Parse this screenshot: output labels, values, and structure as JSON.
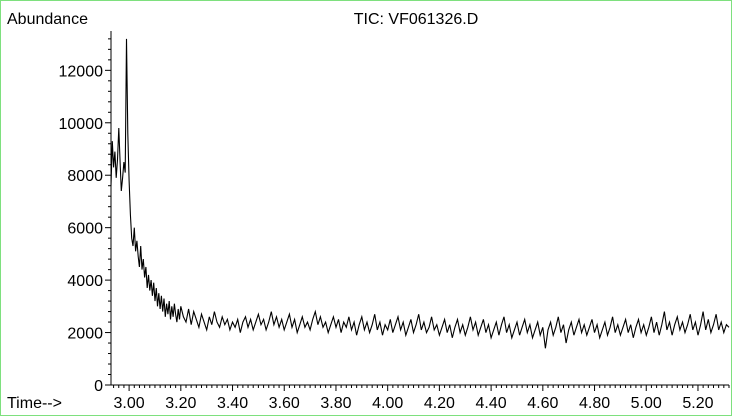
{
  "chart_data": {
    "type": "line",
    "title": "TIC: VF061326.D",
    "ylabel": "Abundance",
    "xlabel_prefix": "Time-->",
    "xlim": [
      2.93,
      5.32
    ],
    "ylim": [
      0,
      13500
    ],
    "x_ticks": [
      3.0,
      3.2,
      3.4,
      3.6,
      3.8,
      4.0,
      4.2,
      4.4,
      4.6,
      4.8,
      5.0,
      5.2
    ],
    "x_tick_labels": [
      "3.00",
      "3.20",
      "3.40",
      "3.60",
      "3.80",
      "4.00",
      "4.20",
      "4.40",
      "4.60",
      "4.80",
      "5.00",
      "5.20"
    ],
    "y_ticks": [
      0,
      2000,
      4000,
      6000,
      8000,
      10000,
      12000
    ],
    "y_tick_labels": [
      "0",
      "2000",
      "4000",
      "6000",
      "8000",
      "10000",
      "12000"
    ],
    "line_color": "#000000",
    "frame_color": "#7ee07e",
    "series": [
      {
        "points": [
          [
            2.93,
            7600
          ],
          [
            2.935,
            9300
          ],
          [
            2.94,
            8300
          ],
          [
            2.945,
            8900
          ],
          [
            2.95,
            7900
          ],
          [
            2.955,
            8600
          ],
          [
            2.96,
            9800
          ],
          [
            2.965,
            8500
          ],
          [
            2.97,
            7400
          ],
          [
            2.975,
            7900
          ],
          [
            2.98,
            8500
          ],
          [
            2.985,
            8100
          ],
          [
            2.99,
            13200
          ],
          [
            2.995,
            9600
          ],
          [
            3.0,
            7800
          ],
          [
            3.005,
            6500
          ],
          [
            3.01,
            5600
          ],
          [
            3.015,
            5300
          ],
          [
            3.02,
            6000
          ],
          [
            3.025,
            5100
          ],
          [
            3.03,
            5500
          ],
          [
            3.035,
            4900
          ],
          [
            3.04,
            4500
          ],
          [
            3.045,
            5300
          ],
          [
            3.05,
            4400
          ],
          [
            3.055,
            4800
          ],
          [
            3.06,
            4100
          ],
          [
            3.065,
            4500
          ],
          [
            3.07,
            3700
          ],
          [
            3.075,
            4200
          ],
          [
            3.08,
            3600
          ],
          [
            3.085,
            4000
          ],
          [
            3.09,
            3400
          ],
          [
            3.095,
            3900
          ],
          [
            3.1,
            3200
          ],
          [
            3.105,
            3700
          ],
          [
            3.11,
            3000
          ],
          [
            3.115,
            3500
          ],
          [
            3.12,
            2900
          ],
          [
            3.125,
            3400
          ],
          [
            3.13,
            2800
          ],
          [
            3.135,
            3300
          ],
          [
            3.14,
            2600
          ],
          [
            3.145,
            3100
          ],
          [
            3.15,
            2700
          ],
          [
            3.155,
            3200
          ],
          [
            3.16,
            2500
          ],
          [
            3.165,
            3000
          ],
          [
            3.17,
            2600
          ],
          [
            3.175,
            3100
          ],
          [
            3.18,
            2700
          ],
          [
            3.185,
            2400
          ],
          [
            3.19,
            2900
          ],
          [
            3.195,
            2500
          ],
          [
            3.2,
            3000
          ],
          [
            3.21,
            2600
          ],
          [
            3.22,
            2400
          ],
          [
            3.23,
            2900
          ],
          [
            3.24,
            2300
          ],
          [
            3.25,
            2800
          ],
          [
            3.26,
            2500
          ],
          [
            3.27,
            2200
          ],
          [
            3.28,
            2700
          ],
          [
            3.29,
            2400
          ],
          [
            3.3,
            2100
          ],
          [
            3.31,
            2600
          ],
          [
            3.32,
            2300
          ],
          [
            3.33,
            2800
          ],
          [
            3.34,
            2400
          ],
          [
            3.35,
            2200
          ],
          [
            3.36,
            2600
          ],
          [
            3.37,
            2300
          ],
          [
            3.38,
            2500
          ],
          [
            3.39,
            2100
          ],
          [
            3.4,
            2400
          ],
          [
            3.41,
            2200
          ],
          [
            3.42,
            2500
          ],
          [
            3.43,
            2000
          ],
          [
            3.44,
            2400
          ],
          [
            3.45,
            2600
          ],
          [
            3.46,
            2200
          ],
          [
            3.47,
            2500
          ],
          [
            3.48,
            2100
          ],
          [
            3.49,
            2400
          ],
          [
            3.5,
            2700
          ],
          [
            3.51,
            2300
          ],
          [
            3.52,
            2500
          ],
          [
            3.53,
            2100
          ],
          [
            3.54,
            2400
          ],
          [
            3.55,
            2800
          ],
          [
            3.56,
            2300
          ],
          [
            3.57,
            2600
          ],
          [
            3.58,
            2200
          ],
          [
            3.59,
            2500
          ],
          [
            3.6,
            2100
          ],
          [
            3.61,
            2400
          ],
          [
            3.62,
            2700
          ],
          [
            3.63,
            2200
          ],
          [
            3.64,
            2500
          ],
          [
            3.65,
            2000
          ],
          [
            3.66,
            2300
          ],
          [
            3.67,
            2600
          ],
          [
            3.68,
            2200
          ],
          [
            3.69,
            2400
          ],
          [
            3.7,
            2100
          ],
          [
            3.71,
            2500
          ],
          [
            3.72,
            2800
          ],
          [
            3.73,
            2300
          ],
          [
            3.74,
            2600
          ],
          [
            3.75,
            2200
          ],
          [
            3.76,
            2400
          ],
          [
            3.77,
            2000
          ],
          [
            3.78,
            2300
          ],
          [
            3.79,
            2600
          ],
          [
            3.8,
            2200
          ],
          [
            3.81,
            2500
          ],
          [
            3.82,
            2000
          ],
          [
            3.83,
            2400
          ],
          [
            3.84,
            2200
          ],
          [
            3.85,
            2600
          ],
          [
            3.86,
            2100
          ],
          [
            3.87,
            2400
          ],
          [
            3.88,
            1900
          ],
          [
            3.89,
            2300
          ],
          [
            3.9,
            2600
          ],
          [
            3.91,
            2100
          ],
          [
            3.92,
            2400
          ],
          [
            3.93,
            2000
          ],
          [
            3.94,
            2300
          ],
          [
            3.95,
            2700
          ],
          [
            3.96,
            2100
          ],
          [
            3.97,
            2400
          ],
          [
            3.98,
            1900
          ],
          [
            3.99,
            2300
          ],
          [
            4.0,
            2100
          ],
          [
            4.01,
            2500
          ],
          [
            4.02,
            2000
          ],
          [
            4.03,
            2300
          ],
          [
            4.04,
            2600
          ],
          [
            4.05,
            2100
          ],
          [
            4.06,
            2400
          ],
          [
            4.07,
            1900
          ],
          [
            4.08,
            2200
          ],
          [
            4.09,
            2500
          ],
          [
            4.1,
            2000
          ],
          [
            4.11,
            2300
          ],
          [
            4.12,
            2700
          ],
          [
            4.13,
            2100
          ],
          [
            4.14,
            2400
          ],
          [
            4.15,
            2000
          ],
          [
            4.16,
            2200
          ],
          [
            4.17,
            2600
          ],
          [
            4.18,
            2100
          ],
          [
            4.19,
            2300
          ],
          [
            4.2,
            1900
          ],
          [
            4.21,
            2200
          ],
          [
            4.22,
            2500
          ],
          [
            4.23,
            2000
          ],
          [
            4.24,
            2300
          ],
          [
            4.25,
            1800
          ],
          [
            4.26,
            2200
          ],
          [
            4.27,
            2500
          ],
          [
            4.28,
            2000
          ],
          [
            4.29,
            2300
          ],
          [
            4.3,
            1900
          ],
          [
            4.31,
            2200
          ],
          [
            4.32,
            2600
          ],
          [
            4.33,
            2100
          ],
          [
            4.34,
            2400
          ],
          [
            4.35,
            1900
          ],
          [
            4.36,
            2200
          ],
          [
            4.37,
            2500
          ],
          [
            4.38,
            2000
          ],
          [
            4.39,
            2300
          ],
          [
            4.4,
            1800
          ],
          [
            4.41,
            2100
          ],
          [
            4.42,
            2400
          ],
          [
            4.43,
            1900
          ],
          [
            4.44,
            2300
          ],
          [
            4.45,
            2600
          ],
          [
            4.46,
            2000
          ],
          [
            4.47,
            2300
          ],
          [
            4.48,
            1800
          ],
          [
            4.49,
            2100
          ],
          [
            4.5,
            2400
          ],
          [
            4.51,
            1900
          ],
          [
            4.52,
            2200
          ],
          [
            4.53,
            2500
          ],
          [
            4.54,
            2000
          ],
          [
            4.55,
            2300
          ],
          [
            4.56,
            1800
          ],
          [
            4.57,
            2100
          ],
          [
            4.58,
            2400
          ],
          [
            4.59,
            1900
          ],
          [
            4.6,
            2200
          ],
          [
            4.61,
            1400
          ],
          [
            4.62,
            2100
          ],
          [
            4.63,
            2400
          ],
          [
            4.64,
            1900
          ],
          [
            4.65,
            2200
          ],
          [
            4.66,
            2600
          ],
          [
            4.67,
            2000
          ],
          [
            4.68,
            2300
          ],
          [
            4.69,
            1600
          ],
          [
            4.7,
            2100
          ],
          [
            4.71,
            2400
          ],
          [
            4.72,
            1900
          ],
          [
            4.73,
            2200
          ],
          [
            4.74,
            2500
          ],
          [
            4.75,
            2000
          ],
          [
            4.76,
            2300
          ],
          [
            4.77,
            1900
          ],
          [
            4.78,
            2200
          ],
          [
            4.79,
            2500
          ],
          [
            4.8,
            2000
          ],
          [
            4.81,
            2300
          ],
          [
            4.82,
            1800
          ],
          [
            4.83,
            2100
          ],
          [
            4.84,
            2400
          ],
          [
            4.85,
            1900
          ],
          [
            4.86,
            2200
          ],
          [
            4.87,
            2600
          ],
          [
            4.88,
            2000
          ],
          [
            4.89,
            2300
          ],
          [
            4.9,
            1900
          ],
          [
            4.91,
            2200
          ],
          [
            4.92,
            2500
          ],
          [
            4.93,
            2000
          ],
          [
            4.94,
            2300
          ],
          [
            4.95,
            1800
          ],
          [
            4.96,
            2200
          ],
          [
            4.97,
            2500
          ],
          [
            4.98,
            2000
          ],
          [
            4.99,
            2300
          ],
          [
            5.0,
            1900
          ],
          [
            5.01,
            2200
          ],
          [
            5.02,
            2600
          ],
          [
            5.03,
            2000
          ],
          [
            5.04,
            2400
          ],
          [
            5.05,
            1900
          ],
          [
            5.06,
            2300
          ],
          [
            5.07,
            2800
          ],
          [
            5.08,
            2100
          ],
          [
            5.09,
            2400
          ],
          [
            5.1,
            1900
          ],
          [
            5.11,
            2300
          ],
          [
            5.12,
            2600
          ],
          [
            5.13,
            2100
          ],
          [
            5.14,
            2400
          ],
          [
            5.15,
            2000
          ],
          [
            5.16,
            2300
          ],
          [
            5.17,
            2700
          ],
          [
            5.18,
            2100
          ],
          [
            5.19,
            2400
          ],
          [
            5.2,
            1900
          ],
          [
            5.21,
            2300
          ],
          [
            5.22,
            2800
          ],
          [
            5.23,
            2100
          ],
          [
            5.24,
            2500
          ],
          [
            5.25,
            2000
          ],
          [
            5.26,
            2300
          ],
          [
            5.27,
            2700
          ],
          [
            5.28,
            2100
          ],
          [
            5.29,
            2400
          ],
          [
            5.3,
            2000
          ],
          [
            5.31,
            2300
          ],
          [
            5.32,
            2200
          ]
        ]
      }
    ]
  }
}
